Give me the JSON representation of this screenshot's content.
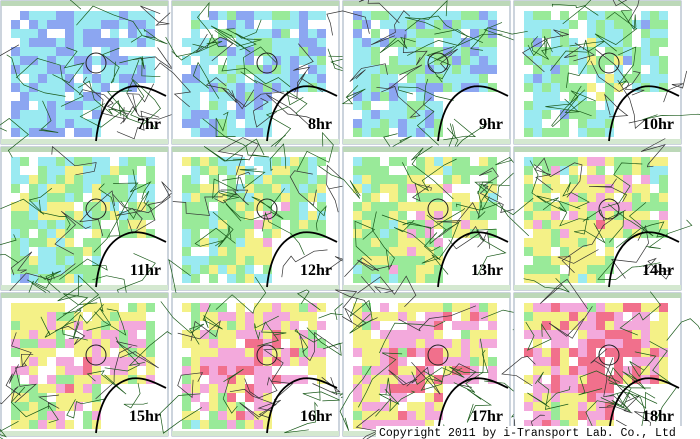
{
  "panels": [
    {
      "label": "7hr"
    },
    {
      "label": "8hr"
    },
    {
      "label": "9hr"
    },
    {
      "label": "10hr"
    },
    {
      "label": "11hr"
    },
    {
      "label": "12hr"
    },
    {
      "label": "13hr"
    },
    {
      "label": "14hr"
    },
    {
      "label": "15hr"
    },
    {
      "label": "16hr"
    },
    {
      "label": "17hr"
    },
    {
      "label": "18hr"
    }
  ],
  "copyright": "Copyright 2011 by i-Transport Lab. Co., Ltd"
}
